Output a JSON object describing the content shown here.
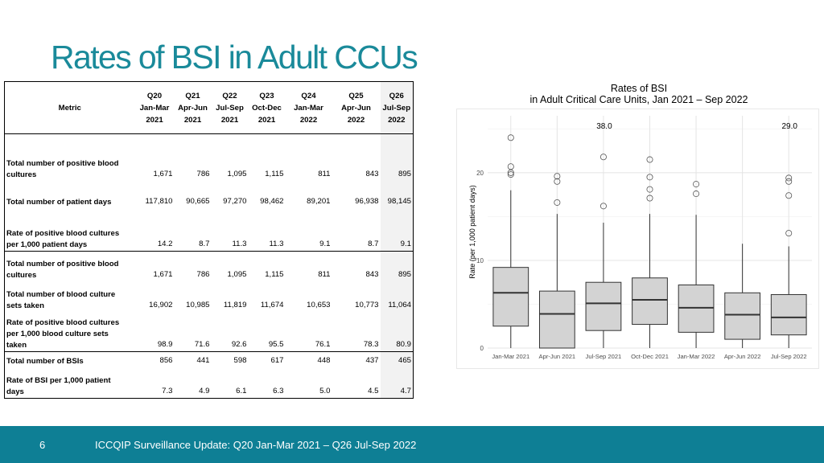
{
  "slide": {
    "title": "Rates of BSI in Adult CCUs",
    "page_number": "6",
    "footer_text": "ICCQIP Surveillance Update: Q20 Jan-Mar 2021 – Q26 Jul-Sep 2022",
    "colors": {
      "title": "#1a8a9a",
      "footer_bg": "#0e7f95",
      "box_fill": "#d3d3d3",
      "last_col_bg": "#f2f2f2"
    }
  },
  "table": {
    "metric_header": "Metric",
    "columns": [
      {
        "q": "Q20",
        "period": "Jan-Mar",
        "year": "2021"
      },
      {
        "q": "Q21",
        "period": "Apr-Jun",
        "year": "2021"
      },
      {
        "q": "Q22",
        "period": "Jul-Sep",
        "year": "2021"
      },
      {
        "q": "Q23",
        "period": "Oct-Dec",
        "year": "2021"
      },
      {
        "q": "Q24",
        "period": "Jan-Mar",
        "year": "2022"
      },
      {
        "q": "Q25",
        "period": "Apr-Jun",
        "year": "2022"
      },
      {
        "q": "Q26",
        "period": "Jul-Sep",
        "year": "2022"
      }
    ],
    "rows": [
      {
        "label": [
          "Total number of positive blood",
          "cultures"
        ],
        "values": [
          "1,671",
          "786",
          "1,095",
          "1,115",
          "811",
          "843",
          "895"
        ]
      },
      {
        "label": [
          "Total number of patient days"
        ],
        "values": [
          "117,810",
          "90,665",
          "97,270",
          "98,462",
          "89,201",
          "96,938",
          "98,145"
        ]
      },
      {
        "label": [
          "Rate of positive blood cultures",
          "per 1,000 patient days"
        ],
        "values": [
          "14.2",
          "8.7",
          "11.3",
          "11.3",
          "9.1",
          "8.7",
          "9.1"
        ]
      },
      {
        "label": [
          "Total number of positive blood",
          "cultures"
        ],
        "values": [
          "1,671",
          "786",
          "1,095",
          "1,115",
          "811",
          "843",
          "895"
        ]
      },
      {
        "label": [
          "Total number of blood culture",
          "sets taken"
        ],
        "values": [
          "16,902",
          "10,985",
          "11,819",
          "11,674",
          "10,653",
          "10,773",
          "11,064"
        ]
      },
      {
        "label": [
          "Rate of positive blood cultures",
          "per 1,000 blood culture sets",
          "taken"
        ],
        "values": [
          "98.9",
          "71.6",
          "92.6",
          "95.5",
          "76.1",
          "78.3",
          "80.9"
        ]
      },
      {
        "label": [
          "Total number of BSIs"
        ],
        "values": [
          "856",
          "441",
          "598",
          "617",
          "448",
          "437",
          "465"
        ]
      },
      {
        "label": [
          "Rate of BSI per 1,000 patient",
          "days"
        ],
        "values": [
          "7.3",
          "4.9",
          "6.1",
          "6.3",
          "5.0",
          "4.5",
          "4.7"
        ]
      }
    ]
  },
  "chart_data": {
    "type": "boxplot",
    "title": [
      "Rates of BSI",
      "in Adult Critical Care Units, Jan 2021 – Sep 2022"
    ],
    "xlabel": "",
    "ylabel": "Rate (per 1,000 patient days)",
    "ylim": [
      0,
      26.5
    ],
    "yticks": [
      0,
      10,
      20
    ],
    "grid": true,
    "categories": [
      "Jan-Mar 2021",
      "Apr-Jun 2021",
      "Jul-Sep 2021",
      "Oct-Dec 2021",
      "Jan-Mar 2022",
      "Apr-Jun 2022",
      "Jul-Sep 2022"
    ],
    "boxes": [
      {
        "whisker_low": 0.0,
        "q1": 2.5,
        "median": 6.3,
        "q3": 9.2,
        "whisker_high": 18.0,
        "outliers": [
          19.8,
          20.0,
          20.7,
          24.0
        ]
      },
      {
        "whisker_low": 0.0,
        "q1": 0.0,
        "median": 3.9,
        "q3": 6.5,
        "whisker_high": 15.3,
        "outliers": [
          16.6,
          19.0,
          19.6
        ]
      },
      {
        "whisker_low": 0.0,
        "q1": 2.0,
        "median": 5.1,
        "q3": 7.5,
        "whisker_high": 14.3,
        "outliers": [
          16.2,
          21.8
        ]
      },
      {
        "whisker_low": 0.0,
        "q1": 2.7,
        "median": 5.5,
        "q3": 8.0,
        "whisker_high": 15.3,
        "outliers": [
          17.1,
          18.1,
          19.5,
          21.5
        ]
      },
      {
        "whisker_low": 0.0,
        "q1": 1.8,
        "median": 4.6,
        "q3": 7.2,
        "whisker_high": 15.2,
        "outliers": [
          17.6,
          18.7
        ]
      },
      {
        "whisker_low": 0.0,
        "q1": 1.0,
        "median": 3.8,
        "q3": 6.3,
        "whisker_high": 11.9,
        "outliers": []
      },
      {
        "whisker_low": 0.0,
        "q1": 1.5,
        "median": 3.5,
        "q3": 6.1,
        "whisker_high": 11.6,
        "outliers": [
          13.1,
          17.4,
          19.0,
          19.4
        ]
      }
    ],
    "annotations": [
      {
        "text": "38.0",
        "category_index": 2
      },
      {
        "text": "29.0",
        "category_index": 6
      }
    ]
  }
}
